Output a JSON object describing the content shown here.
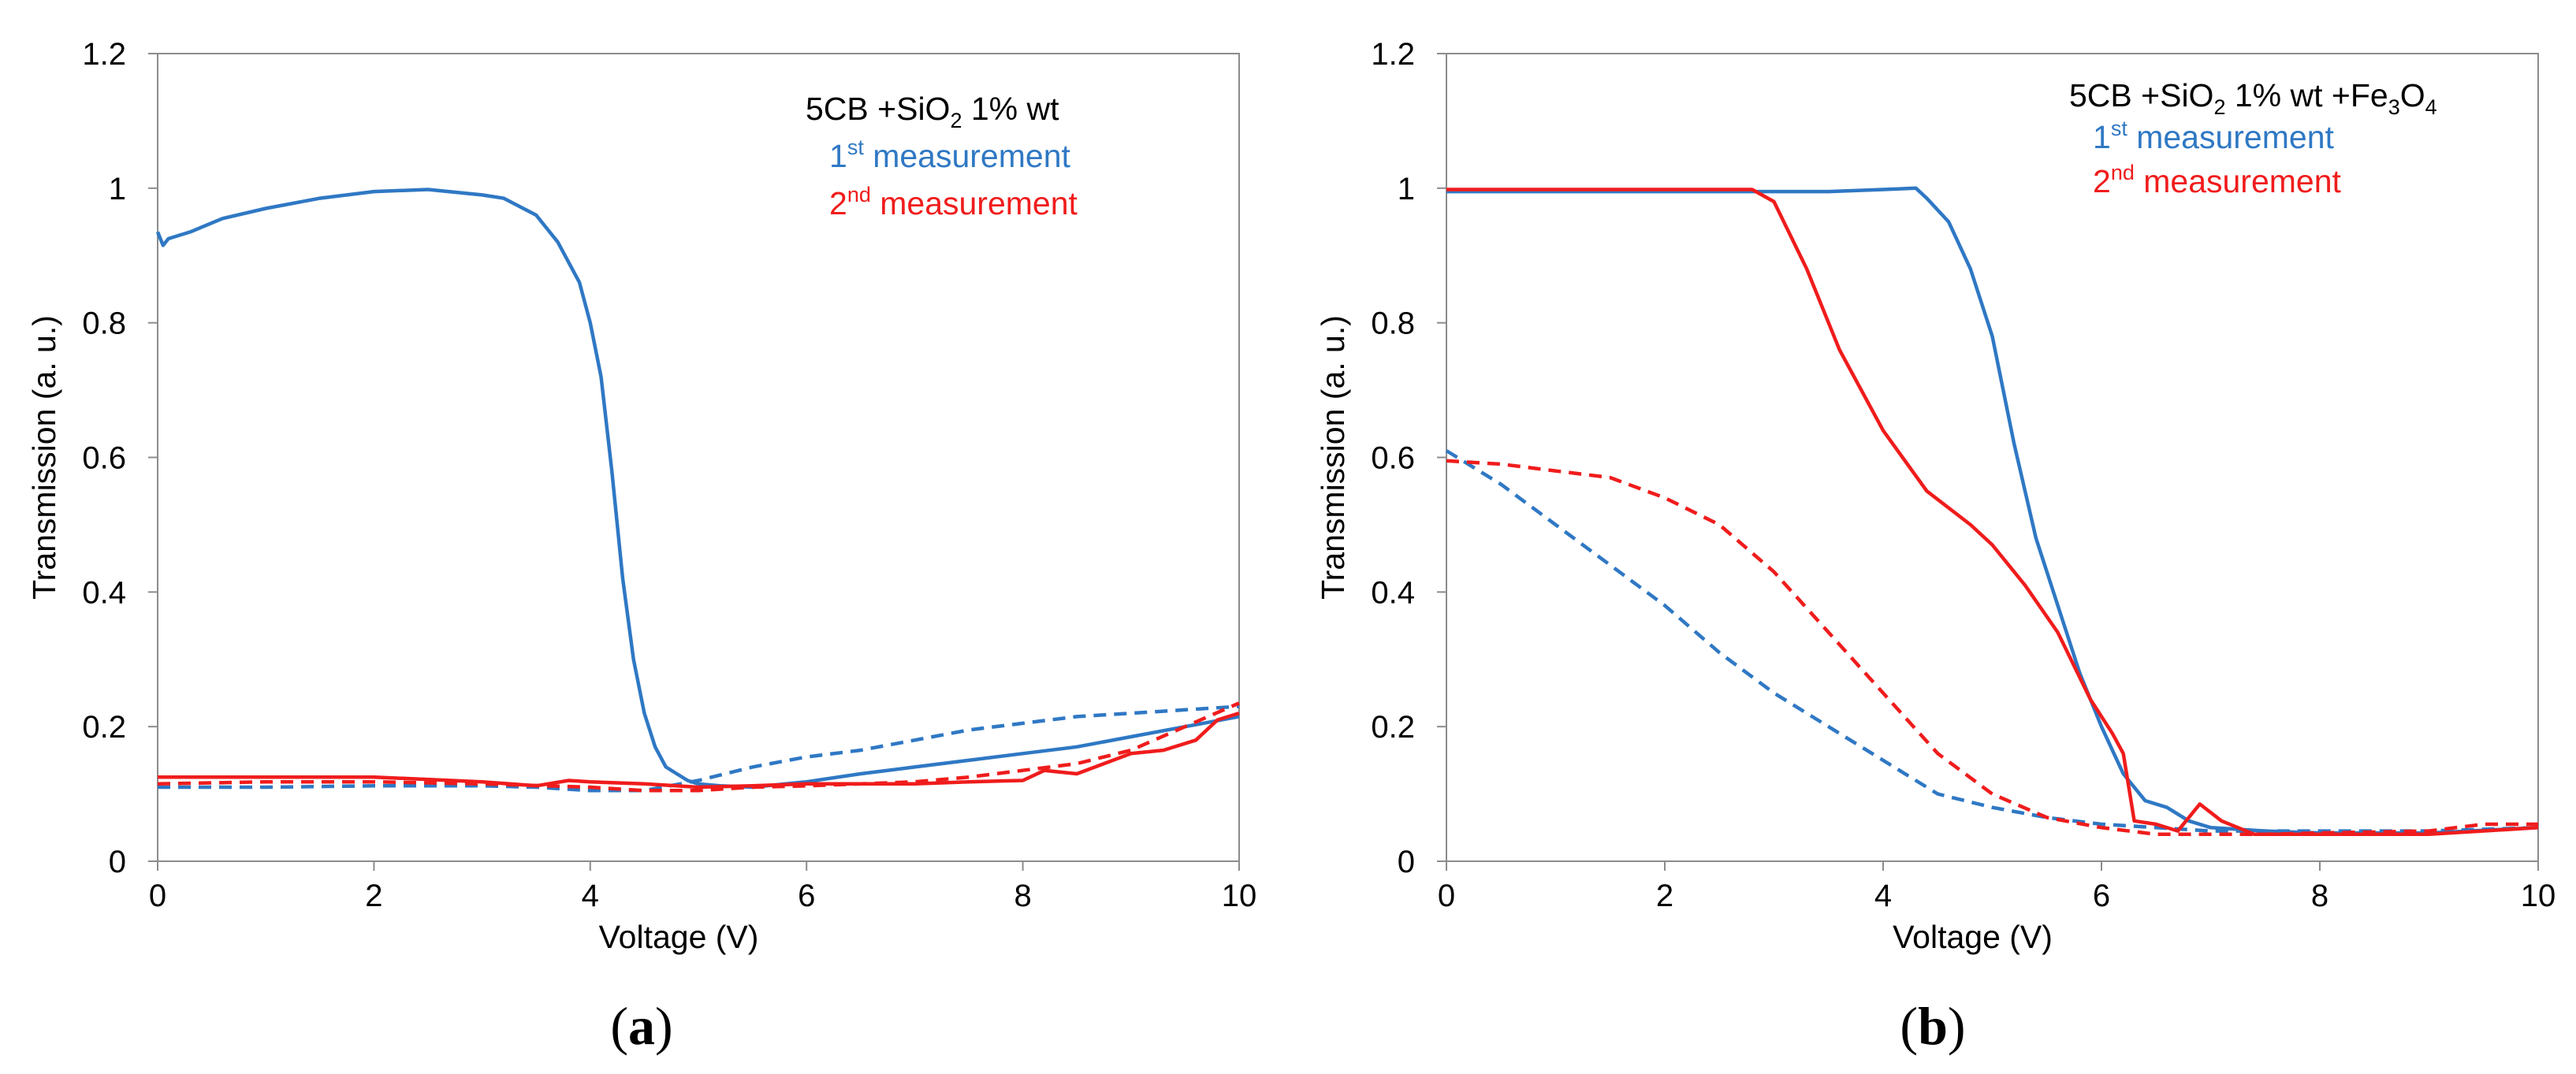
{
  "chart_data": [
    {
      "type": "line",
      "panel_label": "a",
      "xlabel": "Voltage (V)",
      "ylabel": "Transmission (a. u.)",
      "xlim": [
        0,
        10
      ],
      "ylim": [
        0,
        1.2
      ],
      "x_ticks": [
        "0",
        "2",
        "4",
        "6",
        "8",
        "10"
      ],
      "y_ticks": [
        "0",
        "0.2",
        "0.4",
        "0.6",
        "0.8",
        "1",
        "1.2"
      ],
      "legend": {
        "title_main": "5CB +SiO",
        "title_sub": "2",
        "title_rest": " 1% wt",
        "entries": [
          {
            "sup": "st",
            "pre": "1",
            "post": " measurement",
            "color": "#2f78c4"
          },
          {
            "sup": "nd",
            "pre": "2",
            "post": " measurement",
            "color": "#f01c1c"
          }
        ]
      },
      "series": [
        {
          "name": "1st measurement",
          "style": "solid",
          "color": "#2f78c4",
          "x": [
            0,
            0.05,
            0.1,
            0.3,
            0.6,
            1.0,
            1.5,
            2.0,
            2.5,
            3.0,
            3.2,
            3.5,
            3.7,
            3.9,
            4.0,
            4.1,
            4.2,
            4.3,
            4.4,
            4.5,
            4.6,
            4.7,
            4.8,
            4.9,
            5.0,
            5.2,
            5.5,
            6.0,
            6.5,
            7.0,
            7.5,
            8.0,
            8.5,
            9.0,
            9.5,
            10.0
          ],
          "y": [
            0.935,
            0.915,
            0.925,
            0.935,
            0.955,
            0.97,
            0.985,
            0.995,
            0.998,
            0.99,
            0.985,
            0.96,
            0.92,
            0.86,
            0.8,
            0.72,
            0.58,
            0.42,
            0.3,
            0.22,
            0.17,
            0.14,
            0.13,
            0.12,
            0.115,
            0.112,
            0.11,
            0.118,
            0.13,
            0.14,
            0.15,
            0.16,
            0.17,
            0.185,
            0.2,
            0.215
          ]
        },
        {
          "name": "1st measurement (return)",
          "style": "dashed",
          "color": "#2f78c4",
          "x": [
            0,
            1,
            2,
            3,
            3.5,
            4,
            4.5,
            5.0,
            5.5,
            6.0,
            6.5,
            7.0,
            7.5,
            8.0,
            8.5,
            9.0,
            9.5,
            10.0
          ],
          "y": [
            0.11,
            0.11,
            0.112,
            0.112,
            0.11,
            0.105,
            0.105,
            0.12,
            0.14,
            0.155,
            0.165,
            0.18,
            0.195,
            0.205,
            0.215,
            0.22,
            0.225,
            0.23
          ]
        },
        {
          "name": "2nd measurement",
          "style": "solid",
          "color": "#f01c1c",
          "x": [
            0,
            1,
            2,
            3,
            3.5,
            3.8,
            4.0,
            4.5,
            5.0,
            5.5,
            6.0,
            6.5,
            7.0,
            7.5,
            8.0,
            8.2,
            8.5,
            9.0,
            9.3,
            9.6,
            9.8,
            10.0
          ],
          "y": [
            0.125,
            0.125,
            0.125,
            0.118,
            0.112,
            0.12,
            0.118,
            0.115,
            0.11,
            0.112,
            0.115,
            0.115,
            0.115,
            0.118,
            0.12,
            0.135,
            0.13,
            0.16,
            0.165,
            0.18,
            0.21,
            0.22
          ]
        },
        {
          "name": "2nd measurement (return)",
          "style": "dashed",
          "color": "#f01c1c",
          "x": [
            0,
            1,
            2,
            3,
            4,
            4.5,
            5.0,
            5.5,
            6.0,
            6.5,
            7.0,
            7.5,
            8.0,
            8.5,
            9.0,
            9.5,
            10.0
          ],
          "y": [
            0.115,
            0.118,
            0.118,
            0.115,
            0.11,
            0.105,
            0.105,
            0.11,
            0.112,
            0.115,
            0.118,
            0.125,
            0.135,
            0.145,
            0.165,
            0.2,
            0.235
          ]
        }
      ]
    },
    {
      "type": "line",
      "panel_label": "b",
      "xlabel": "Voltage (V)",
      "ylabel": "Transmission (a. u.)",
      "xlim": [
        0,
        10
      ],
      "ylim": [
        0,
        1.2
      ],
      "x_ticks": [
        "0",
        "2",
        "4",
        "6",
        "8",
        "10"
      ],
      "y_ticks": [
        "0",
        "0.2",
        "0.4",
        "0.6",
        "0.8",
        "1",
        "1.2"
      ],
      "legend": {
        "title_main": "5CB +SiO",
        "title_sub": "2",
        "title_rest": " 1% wt +Fe",
        "title_sub2": "3",
        "title_mid2": "O",
        "title_sub3": "4",
        "entries": [
          {
            "sup": "st",
            "pre": "1",
            "post": " measurement",
            "color": "#2f78c4"
          },
          {
            "sup": "nd",
            "pre": "2",
            "post": " measurement",
            "color": "#f01c1c"
          }
        ]
      },
      "series": [
        {
          "name": "1st measurement",
          "style": "solid",
          "color": "#2f78c4",
          "x": [
            0,
            1,
            2,
            3,
            3.5,
            4.0,
            4.3,
            4.4,
            4.6,
            4.8,
            5.0,
            5.2,
            5.4,
            5.6,
            5.8,
            6.0,
            6.2,
            6.4,
            6.6,
            6.8,
            7.0,
            7.5,
            8.0,
            9.0,
            10.0
          ],
          "y": [
            0.995,
            0.995,
            0.995,
            0.995,
            0.995,
            0.998,
            1.0,
            0.985,
            0.95,
            0.88,
            0.78,
            0.62,
            0.48,
            0.38,
            0.28,
            0.2,
            0.13,
            0.09,
            0.08,
            0.06,
            0.05,
            0.045,
            0.042,
            0.042,
            0.05
          ]
        },
        {
          "name": "1st measurement (return)",
          "style": "dashed",
          "color": "#2f78c4",
          "x": [
            0,
            0.5,
            1.0,
            1.5,
            2.0,
            2.5,
            3.0,
            3.5,
            4.0,
            4.5,
            5.0,
            5.5,
            6.0,
            6.5,
            7.0,
            8.0,
            9.0,
            10.0
          ],
          "y": [
            0.61,
            0.56,
            0.5,
            0.44,
            0.38,
            0.31,
            0.25,
            0.2,
            0.15,
            0.1,
            0.08,
            0.065,
            0.055,
            0.05,
            0.045,
            0.045,
            0.045,
            0.05
          ]
        },
        {
          "name": "2nd measurement",
          "style": "solid",
          "color": "#f01c1c",
          "x": [
            0,
            1,
            2,
            2.8,
            3.0,
            3.3,
            3.6,
            4.0,
            4.4,
            4.8,
            5.0,
            5.3,
            5.6,
            5.9,
            6.1,
            6.2,
            6.3,
            6.5,
            6.7,
            6.9,
            7.1,
            7.4,
            7.8,
            8.5,
            9.0,
            10.0
          ],
          "y": [
            0.998,
            0.998,
            0.998,
            0.998,
            0.98,
            0.88,
            0.76,
            0.64,
            0.55,
            0.5,
            0.47,
            0.41,
            0.34,
            0.24,
            0.19,
            0.16,
            0.06,
            0.055,
            0.045,
            0.085,
            0.06,
            0.04,
            0.04,
            0.04,
            0.04,
            0.05
          ]
        },
        {
          "name": "2nd measurement (return)",
          "style": "dashed",
          "color": "#f01c1c",
          "x": [
            0,
            0.5,
            1.0,
            1.5,
            2.0,
            2.5,
            3.0,
            3.5,
            4.0,
            4.5,
            5.0,
            5.5,
            6.0,
            6.5,
            7.0,
            7.5,
            8.0,
            9.0,
            9.5,
            10.0
          ],
          "y": [
            0.595,
            0.59,
            0.58,
            0.57,
            0.54,
            0.5,
            0.43,
            0.34,
            0.25,
            0.16,
            0.1,
            0.065,
            0.05,
            0.04,
            0.04,
            0.04,
            0.042,
            0.045,
            0.055,
            0.055
          ]
        }
      ]
    }
  ]
}
